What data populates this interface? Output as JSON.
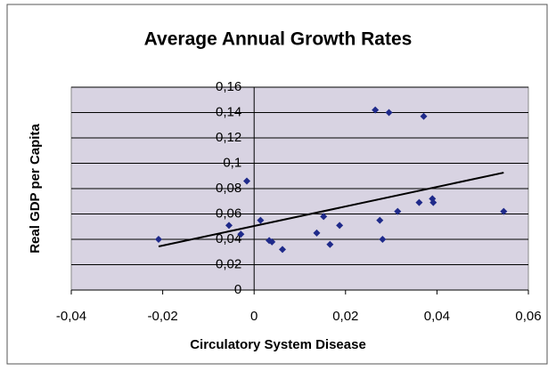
{
  "chart_data": {
    "type": "scatter",
    "title": "Average Annual Growth Rates",
    "x_label": "Circulatory System Disease",
    "y_label": "Real GDP per Capita",
    "x": [
      -0.0209,
      -0.0055,
      -0.0029,
      -0.0016,
      0.0014,
      0.0033,
      0.0039,
      0.0062,
      0.0137,
      0.0152,
      0.0166,
      0.0187,
      0.0265,
      0.0295,
      0.0275,
      0.0281,
      0.0314,
      0.0361,
      0.0371,
      0.039,
      0.0392,
      0.0546
    ],
    "y": [
      0.04,
      0.051,
      0.044,
      0.086,
      0.055,
      0.039,
      0.038,
      0.032,
      0.045,
      0.058,
      0.036,
      0.051,
      0.142,
      0.14,
      0.055,
      0.04,
      0.062,
      0.069,
      0.137,
      0.072,
      0.069,
      0.062
    ],
    "color": "#1f2a8a",
    "trendline": {
      "x": [
        -0.0209,
        0.0546
      ],
      "y": [
        0.0344,
        0.0926
      ],
      "color": "#000000"
    },
    "xlim": [
      -0.04,
      0.06
    ],
    "ylim": [
      0,
      0.16
    ],
    "xticks": [
      {
        "value": -0.04,
        "label": "-0,04"
      },
      {
        "value": -0.02,
        "label": "-0,02"
      },
      0,
      {
        "value": 0.02,
        "label": "0,02"
      },
      {
        "value": 0.04,
        "label": "0,04"
      },
      {
        "value": 0.06,
        "label": "0,06"
      }
    ],
    "yticks": [
      0,
      {
        "value": 0.02,
        "label": "0,02"
      },
      {
        "value": 0.04,
        "label": "0,04"
      },
      {
        "value": 0.06,
        "label": "0,06"
      },
      {
        "value": 0.08,
        "label": "0,08"
      },
      {
        "value": 0.1,
        "label": "0,1"
      },
      {
        "value": 0.12,
        "label": "0,12"
      },
      {
        "value": 0.14,
        "label": "0,14"
      },
      {
        "value": 0.16,
        "label": "0,16"
      }
    ],
    "grid": true
  }
}
